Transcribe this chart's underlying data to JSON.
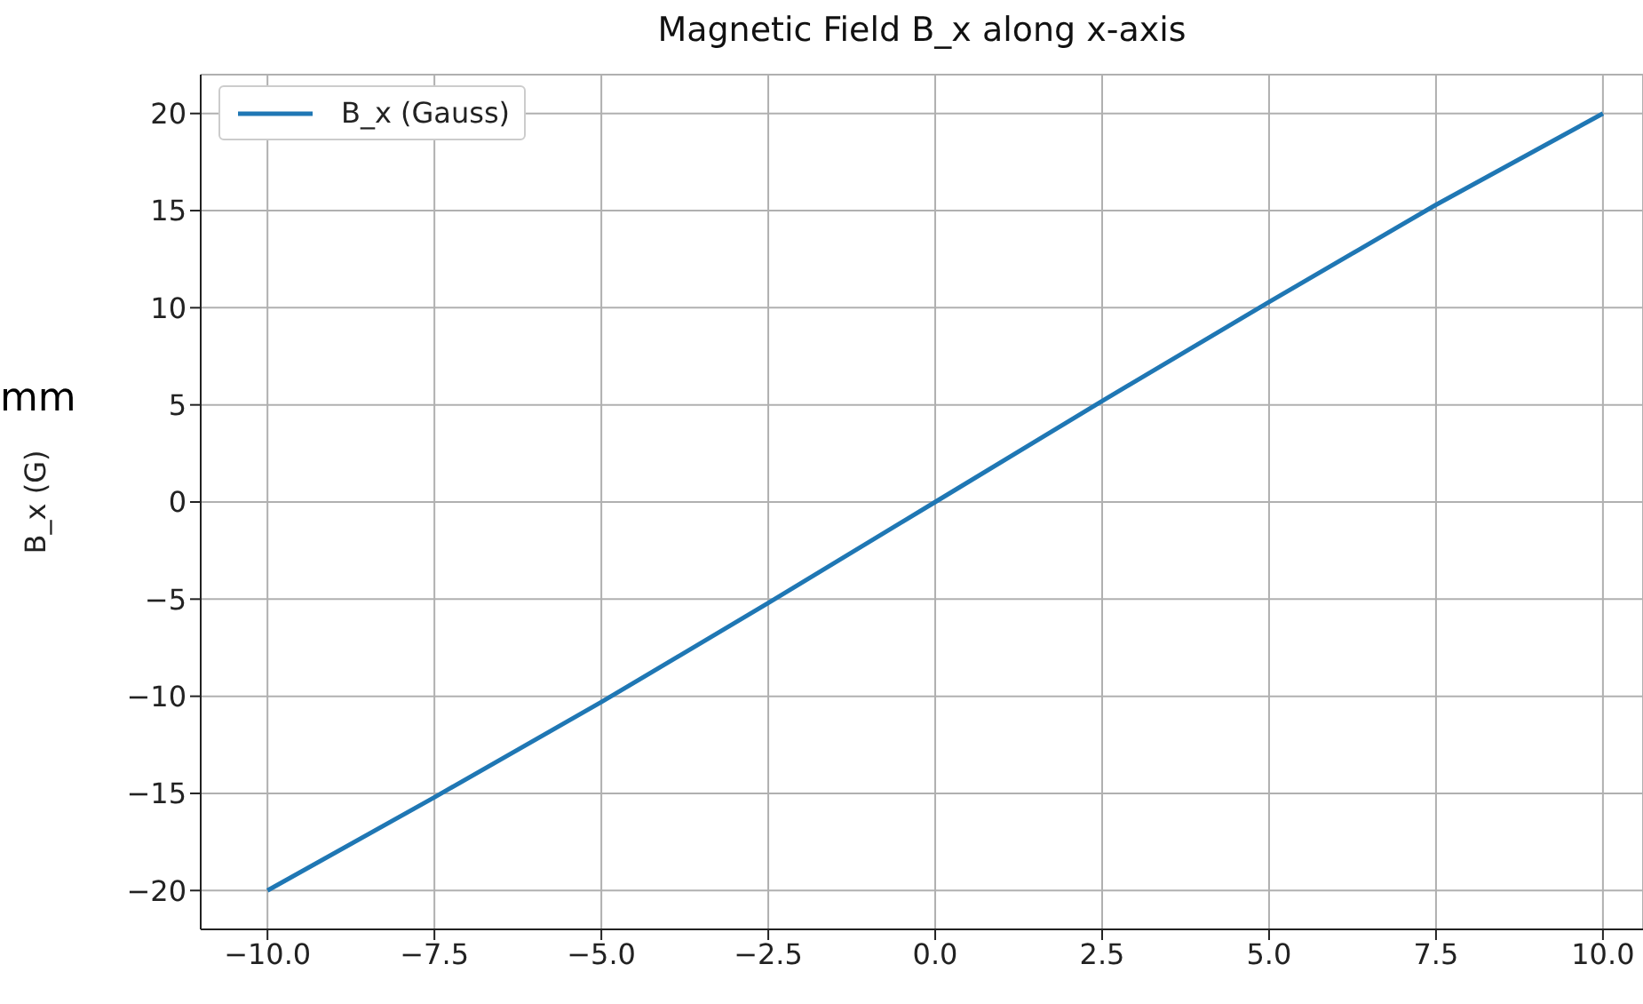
{
  "chart_data": {
    "type": "line",
    "title": "Magnetic Field B_x along x-axis",
    "ylabel": "B_x (G)",
    "annotations": [
      "mm"
    ],
    "x": [
      -10,
      -7.5,
      -5,
      -2.5,
      0,
      2.5,
      5,
      7.5,
      10
    ],
    "series": [
      {
        "name": "B_x (Gauss)",
        "color": "#1f77b4",
        "values": [
          -20,
          -15.2,
          -10.3,
          -5.2,
          0,
          5.2,
          10.3,
          15.3,
          20
        ]
      }
    ],
    "xlim": [
      -11,
      10.6
    ],
    "xticks": [
      {
        "value": -10,
        "label": "−10.0"
      },
      {
        "value": -7.5,
        "label": "−7.5"
      },
      {
        "value": -5,
        "label": "−5.0"
      },
      {
        "value": -2.5,
        "label": "−2.5"
      },
      {
        "value": 0,
        "label": "0.0"
      },
      {
        "value": 2.5,
        "label": "2.5"
      },
      {
        "value": 5,
        "label": "5.0"
      },
      {
        "value": 7.5,
        "label": "7.5"
      },
      {
        "value": 10,
        "label": "10.0"
      }
    ],
    "ylim": [
      -22,
      22
    ],
    "yticks": [
      {
        "value": -20,
        "label": "−20"
      },
      {
        "value": -15,
        "label": "−15"
      },
      {
        "value": -10,
        "label": "−10"
      },
      {
        "value": -5,
        "label": "−5"
      },
      0,
      5,
      10,
      15,
      20
    ],
    "grid": true,
    "legend": "top left",
    "marker": "none",
    "line_style": "solid"
  }
}
